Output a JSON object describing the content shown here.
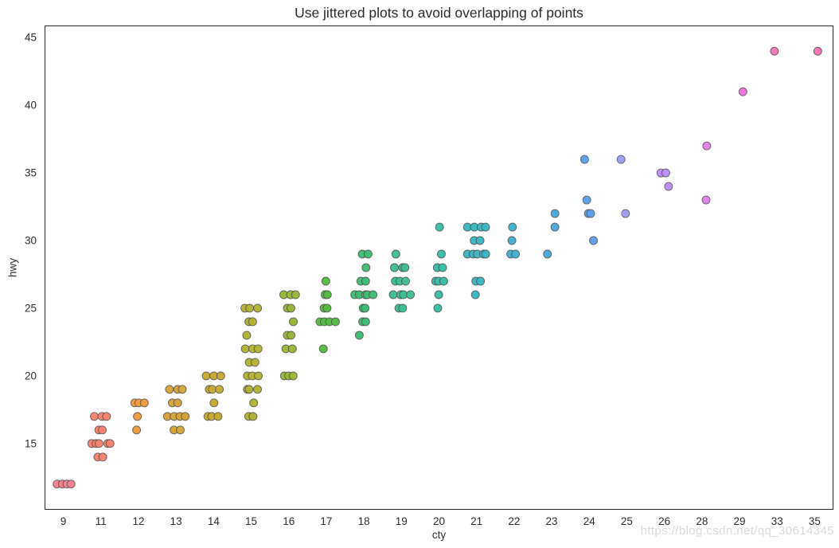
{
  "figure": {
    "title": "Use jittered plots to avoid overlapping of points",
    "watermark": "https://blog.csdn.net/qq_30614345"
  },
  "chart_data": {
    "type": "scatter",
    "variant": "jittered-stripplot",
    "title": "Use jittered plots to avoid overlapping of points",
    "xlabel": "cty",
    "ylabel": "hwy",
    "grid": false,
    "legend": "none",
    "categories": [
      "9",
      "11",
      "12",
      "13",
      "14",
      "15",
      "16",
      "17",
      "18",
      "19",
      "20",
      "21",
      "22",
      "23",
      "24",
      "25",
      "26",
      "28",
      "29",
      "33",
      "35"
    ],
    "y_ticks": [
      15,
      20,
      25,
      30,
      35,
      40,
      45
    ],
    "ylim": [
      10.1,
      45.9
    ],
    "point_colors": {
      "9": "#f2808f",
      "11": "#f3836d",
      "12": "#ee9a3d",
      "13": "#d4a338",
      "14": "#c5a930",
      "15": "#b2b233",
      "16": "#97b635",
      "17": "#55bb42",
      "18": "#3dbd72",
      "19": "#3bbf95",
      "20": "#38bda7",
      "21": "#3ab7c2",
      "22": "#3fb0d0",
      "23": "#4aa7dd",
      "24": "#5ba0ea",
      "25": "#9f9bf2",
      "26": "#bb8ff2",
      "28": "#df80e8",
      "29": "#ef6ede",
      "33": "#f374bc",
      "35": "#f374b0"
    },
    "points": [
      [
        9,
        12,
        4
      ],
      [
        11,
        14,
        2
      ],
      [
        11,
        15,
        5
      ],
      [
        11,
        16,
        2
      ],
      [
        11,
        17,
        3
      ],
      [
        12,
        16,
        1
      ],
      [
        12,
        17,
        1
      ],
      [
        12,
        18,
        3
      ],
      [
        13,
        16,
        2
      ],
      [
        13,
        17,
        4
      ],
      [
        13,
        18,
        2
      ],
      [
        13,
        19,
        3
      ],
      [
        14,
        17,
        3
      ],
      [
        14,
        18,
        1
      ],
      [
        14,
        19,
        3
      ],
      [
        14,
        20,
        3
      ],
      [
        15,
        17,
        2
      ],
      [
        15,
        18,
        1
      ],
      [
        15,
        19,
        3
      ],
      [
        15,
        20,
        3
      ],
      [
        15,
        21,
        2
      ],
      [
        15,
        22,
        3
      ],
      [
        15,
        23,
        1
      ],
      [
        15,
        24,
        2
      ],
      [
        15,
        25,
        3
      ],
      [
        16,
        20,
        3
      ],
      [
        16,
        22,
        2
      ],
      [
        16,
        23,
        2
      ],
      [
        16,
        24,
        1
      ],
      [
        16,
        25,
        2
      ],
      [
        16,
        26,
        3
      ],
      [
        17,
        22,
        1
      ],
      [
        17,
        24,
        4
      ],
      [
        17,
        25,
        2
      ],
      [
        17,
        26,
        2
      ],
      [
        17,
        27,
        1
      ],
      [
        18,
        23,
        1
      ],
      [
        18,
        24,
        2
      ],
      [
        18,
        25,
        2
      ],
      [
        18,
        26,
        5
      ],
      [
        18,
        27,
        2
      ],
      [
        18,
        28,
        1
      ],
      [
        18,
        29,
        2
      ],
      [
        19,
        25,
        2
      ],
      [
        19,
        26,
        4
      ],
      [
        19,
        27,
        3
      ],
      [
        19,
        28,
        3
      ],
      [
        19,
        29,
        1
      ],
      [
        20,
        25,
        1
      ],
      [
        20,
        26,
        1
      ],
      [
        20,
        27,
        3
      ],
      [
        20,
        28,
        2
      ],
      [
        20,
        29,
        1
      ],
      [
        20,
        31,
        1
      ],
      [
        21,
        26,
        1
      ],
      [
        21,
        27,
        2
      ],
      [
        21,
        29,
        5
      ],
      [
        21,
        30,
        2
      ],
      [
        21,
        31,
        4
      ],
      [
        22,
        29,
        2
      ],
      [
        22,
        30,
        1
      ],
      [
        22,
        31,
        1
      ],
      [
        23,
        29,
        1
      ],
      [
        23,
        31,
        1
      ],
      [
        23,
        32,
        1
      ],
      [
        24,
        30,
        1
      ],
      [
        24,
        32,
        2
      ],
      [
        24,
        33,
        1
      ],
      [
        24,
        36,
        1
      ],
      [
        25,
        32,
        1
      ],
      [
        25,
        36,
        1
      ],
      [
        26,
        34,
        1
      ],
      [
        26,
        35,
        2
      ],
      [
        28,
        33,
        1
      ],
      [
        28,
        37,
        1
      ],
      [
        29,
        41,
        1
      ],
      [
        33,
        44,
        1
      ],
      [
        35,
        44,
        1
      ]
    ],
    "point_style": {
      "radius": 5,
      "edge_color": "#4d4d4d",
      "edge_width": 0.9
    }
  }
}
